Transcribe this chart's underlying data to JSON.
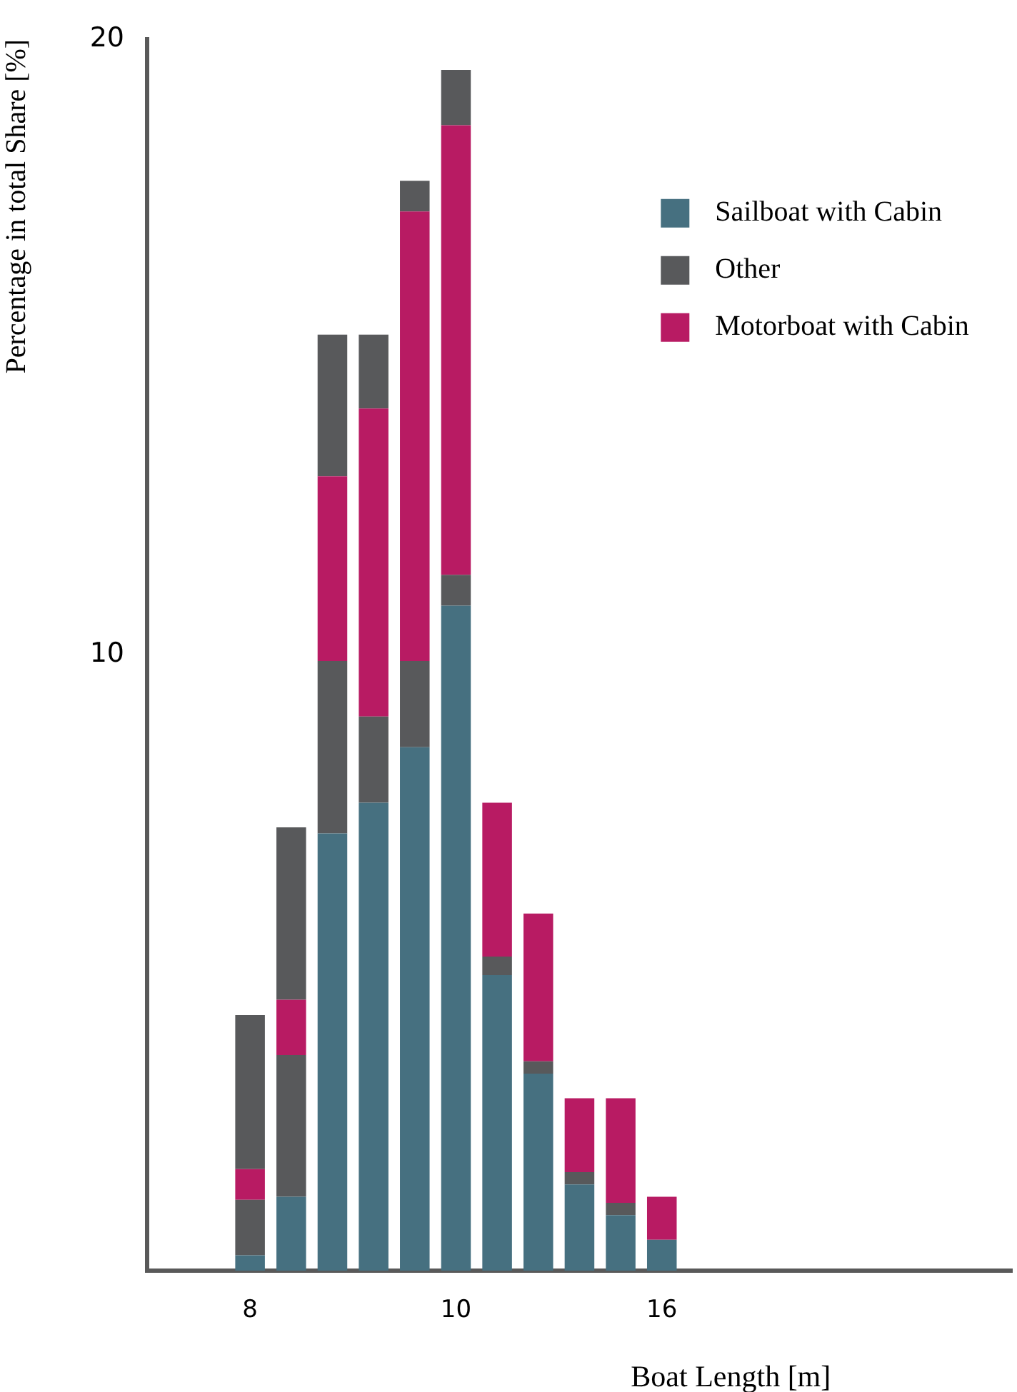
{
  "chart_data": {
    "type": "bar",
    "stacked": true,
    "xlabel": "Boat Length [m]",
    "ylabel": "Percentage in total Share [%]",
    "categories": [
      null,
      null,
      "8",
      null,
      null,
      null,
      null,
      "10",
      null,
      null,
      null,
      null,
      "16",
      null,
      null,
      null,
      null,
      null,
      null,
      null,
      null
    ],
    "series": [
      {
        "name": "Sailboat with Cabin",
        "color": "#467080",
        "values": [
          null,
          null,
          0.25,
          1.2,
          7.1,
          7.6,
          8.5,
          10.8,
          4.8,
          3.2,
          1.4,
          0.9,
          0.5,
          null,
          null,
          null,
          null,
          null,
          null,
          null,
          null
        ]
      },
      {
        "name": "Other",
        "color": "#58595b",
        "values": [
          null,
          null,
          0.9,
          2.3,
          2.8,
          1.4,
          1.4,
          0.5,
          0.3,
          0.2,
          0.2,
          0.2,
          0,
          null,
          null,
          null,
          null,
          null,
          null,
          null,
          null
        ]
      },
      {
        "name": "Motorboat with Cabin",
        "color": "#b81b63",
        "values": [
          null,
          null,
          0.5,
          0.9,
          3.0,
          5.0,
          7.3,
          7.3,
          2.5,
          2.4,
          1.2,
          1.7,
          0.7,
          null,
          null,
          null,
          null,
          null,
          null,
          null,
          null
        ]
      },
      {
        "color": "#58595b",
        "values": [
          null,
          null,
          2.5,
          2.8,
          2.3,
          1.2,
          0.5,
          0.9,
          0,
          0,
          0,
          0,
          0,
          null,
          null,
          null,
          null,
          null,
          null,
          null,
          null
        ]
      }
    ],
    "ylim": [
      0,
      20
    ],
    "yticks": [
      10,
      20
    ],
    "grid": false,
    "legend": "top right"
  }
}
